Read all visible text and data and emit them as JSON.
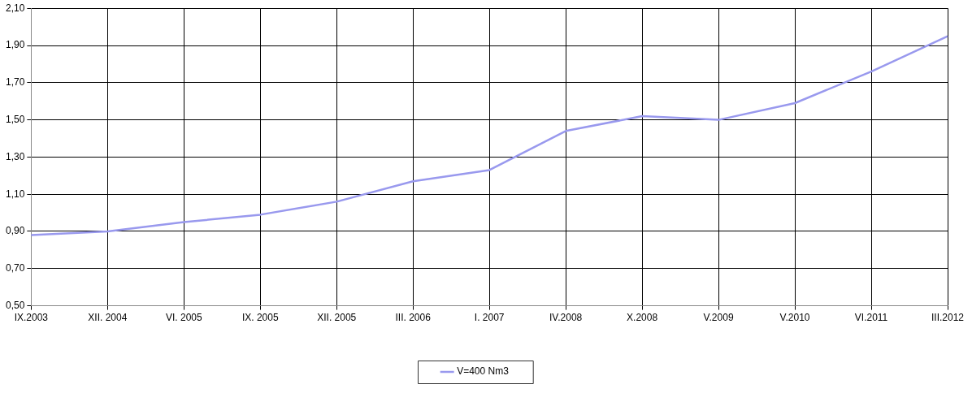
{
  "chart_data": {
    "type": "line",
    "categories": [
      "IX.2003",
      "XII. 2004",
      "VI. 2005",
      "IX. 2005",
      "XII. 2005",
      "III. 2006",
      "I. 2007",
      "IV.2008",
      "X.2008",
      "V.2009",
      "V.2010",
      "VI.2011",
      "III.2012"
    ],
    "series": [
      {
        "name": "V=400 Nm3",
        "color": "#9999ee",
        "values": [
          0.88,
          0.9,
          0.95,
          0.99,
          1.06,
          1.17,
          1.23,
          1.44,
          1.52,
          1.5,
          1.59,
          1.76,
          1.95
        ]
      }
    ],
    "ylim": [
      0.5,
      2.1
    ],
    "yticks": [
      {
        "value": 0.5,
        "label": "0,50"
      },
      {
        "value": 0.7,
        "label": "0,70"
      },
      {
        "value": 0.9,
        "label": "0,90"
      },
      {
        "value": 1.1,
        "label": "1,10"
      },
      {
        "value": 1.3,
        "label": "1,30"
      },
      {
        "value": 1.5,
        "label": "1,50"
      },
      {
        "value": 1.7,
        "label": "1,70"
      },
      {
        "value": 1.9,
        "label": "1,90"
      },
      {
        "value": 2.1,
        "label": "2,10"
      }
    ],
    "grid": true,
    "legend": "bottom",
    "marker": "none",
    "line_style": "solid"
  }
}
